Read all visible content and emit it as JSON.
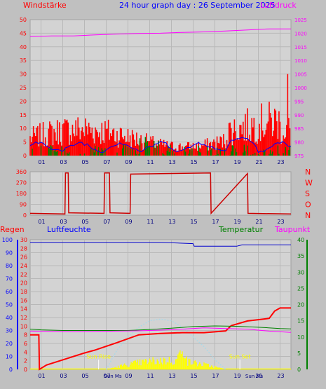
{
  "title": "24 hour graph day : 26 September 2025",
  "colors": {
    "bg": "#c0c0c0",
    "plot": "#d3d3d3",
    "grid": "#b8b8b8",
    "red": "#ff0000",
    "darkred": "#cc0000",
    "blue": "#0000ff",
    "magenta": "#ff00ff",
    "green": "#008000",
    "yellow": "#ffff00",
    "lightblue": "#add8e6",
    "darkblue": "#0000cc"
  },
  "x_ticks": [
    "01",
    "03",
    "05",
    "07",
    "09",
    "11",
    "13",
    "15",
    "17",
    "19",
    "21",
    "23"
  ],
  "chart_data": [
    {
      "type": "line",
      "labels": {
        "left": "Windstärke",
        "right": "Luftdruck"
      },
      "left_axis": {
        "ticks": [
          0,
          5,
          10,
          15,
          20,
          25,
          30,
          35,
          40,
          45,
          50
        ],
        "range": [
          0,
          50
        ]
      },
      "right_axis": {
        "ticks": [
          975,
          980,
          985,
          990,
          995,
          1000,
          1005,
          1010,
          1015,
          1020,
          1025
        ],
        "range": [
          975,
          1025
        ]
      },
      "series": [
        {
          "label": "Luftdruck",
          "color": "magenta",
          "x": [
            0,
            2,
            4,
            6,
            8,
            10,
            12,
            14,
            16,
            18,
            20,
            22,
            24
          ],
          "y": [
            1018.8,
            1019.0,
            1019.0,
            1019.4,
            1019.7,
            1019.9,
            1020.0,
            1020.3,
            1020.5,
            1020.8,
            1021.2,
            1021.6,
            1021.6
          ]
        }
      ],
      "noise_series": [
        "Windböe (red bars)",
        "Windstärke Mittel (blue)",
        "Wind (green bars)"
      ]
    },
    {
      "type": "line",
      "labels": {
        "right": [
          "N",
          "W",
          "S",
          "O",
          "N"
        ]
      },
      "left_axis": {
        "ticks": [
          0,
          90,
          180,
          270,
          360
        ],
        "range": [
          0,
          360
        ]
      },
      "series": [
        {
          "label": "Windrichtung",
          "color": "red",
          "x": [
            0,
            3.2,
            3.25,
            3.5,
            3.55,
            6.8,
            6.85,
            7.3,
            7.35,
            9.2,
            9.25,
            16.6,
            16.65,
            20.0,
            20.05,
            24
          ],
          "y": [
            15,
            10,
            350,
            350,
            20,
            15,
            350,
            350,
            20,
            15,
            340,
            350,
            15,
            345,
            15,
            10
          ]
        }
      ]
    },
    {
      "type": "line",
      "labels": {
        "left_outer": "Regen",
        "left_inner": "Luftfeuchte",
        "right_inner": "Temperatur",
        "right_outer": "Taupunkt"
      },
      "left_outer_axis": {
        "ticks": [
          0,
          10,
          20,
          30,
          40,
          50,
          60,
          70,
          80,
          90,
          100
        ],
        "range": [
          0,
          100
        ]
      },
      "left_inner_axis": {
        "ticks": [
          0,
          2,
          4,
          6,
          8,
          10,
          12,
          14,
          16,
          18,
          20,
          22,
          24,
          26,
          28,
          30
        ],
        "range": [
          0,
          30
        ]
      },
      "right_axis": {
        "ticks": [
          0,
          5,
          10,
          15,
          20,
          25,
          30,
          35,
          40
        ],
        "range": [
          0,
          40
        ]
      },
      "annotations": [
        "Sun Rise",
        "Sun Set",
        "Sun Ms",
        "Sun Ms"
      ],
      "series": [
        {
          "label": "Luftfeuchte",
          "color": "blue",
          "x": [
            0,
            8,
            12,
            15,
            15.1,
            19,
            19.5,
            24
          ],
          "y": [
            98,
            98,
            98,
            97,
            95,
            95,
            96,
            96
          ]
        },
        {
          "label": "Regen",
          "color": "red",
          "x": [
            0,
            0.8,
            0.85,
            1.5,
            3,
            5,
            6,
            8,
            10,
            12,
            14,
            16,
            18,
            18.5,
            20,
            21,
            22,
            22.5,
            23,
            24
          ],
          "y": [
            8.0,
            8.0,
            0,
            1,
            2.2,
            3.8,
            4.5,
            6.2,
            8.0,
            8.3,
            8.5,
            8.5,
            8.9,
            10.1,
            11.2,
            11.5,
            11.8,
            13.5,
            14.2,
            14.2
          ]
        },
        {
          "label": "Temperatur",
          "color": "green",
          "x": [
            0,
            1,
            3,
            5,
            7,
            9,
            11,
            13,
            15,
            17,
            19,
            21,
            23,
            24
          ],
          "y": [
            12.4,
            12.2,
            12.0,
            12.0,
            12.0,
            12.0,
            12.3,
            12.7,
            13.2,
            13.4,
            13.3,
            13.0,
            12.6,
            12.5
          ]
        },
        {
          "label": "Taupunkt",
          "color": "magenta",
          "x": [
            0,
            2,
            4,
            6,
            8,
            10,
            12,
            14,
            16,
            18,
            20,
            22,
            24
          ],
          "y": [
            11.8,
            11.7,
            11.6,
            11.7,
            11.8,
            11.9,
            12.1,
            12.4,
            12.8,
            12.6,
            12.4,
            11.8,
            11.4
          ]
        },
        {
          "label": "Sonne",
          "color": "lightblue",
          "x": [
            7,
            8,
            9,
            10,
            11,
            12,
            13,
            14,
            15,
            16,
            17,
            18
          ],
          "y": [
            0,
            6,
            10,
            13,
            15,
            15.5,
            15,
            13,
            10,
            7,
            3,
            0
          ]
        }
      ],
      "solar_bars": "Solarstrahlung (yellow bars)"
    }
  ]
}
